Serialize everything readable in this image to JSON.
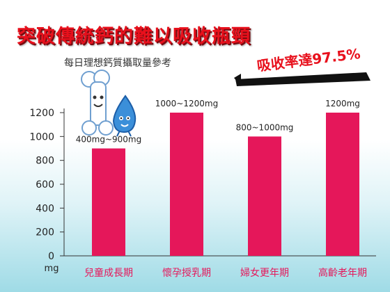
{
  "title": "突破傳統鈣的難以吸收瓶頸",
  "subtitle": "每日理想鈣質攝取量參考",
  "badge": "吸收率達97.5%",
  "colors": {
    "bar": "#e5175a",
    "title": "#e8101c",
    "category": "#e5175a"
  },
  "chart_data": {
    "type": "bar",
    "categories": [
      "兒童成長期",
      "懷孕授乳期",
      "婦女更年期",
      "高齡老年期"
    ],
    "values": [
      900,
      1200,
      1000,
      1200
    ],
    "labels": [
      "400mg~900mg",
      "1000~1200mg",
      "800~1000mg",
      "1200mg"
    ],
    "ylabel": "mg",
    "ylim": [
      0,
      1200
    ],
    "yticks": [
      "0",
      "200",
      "400",
      "600",
      "800",
      "1000",
      "1200"
    ],
    "grid": false
  }
}
